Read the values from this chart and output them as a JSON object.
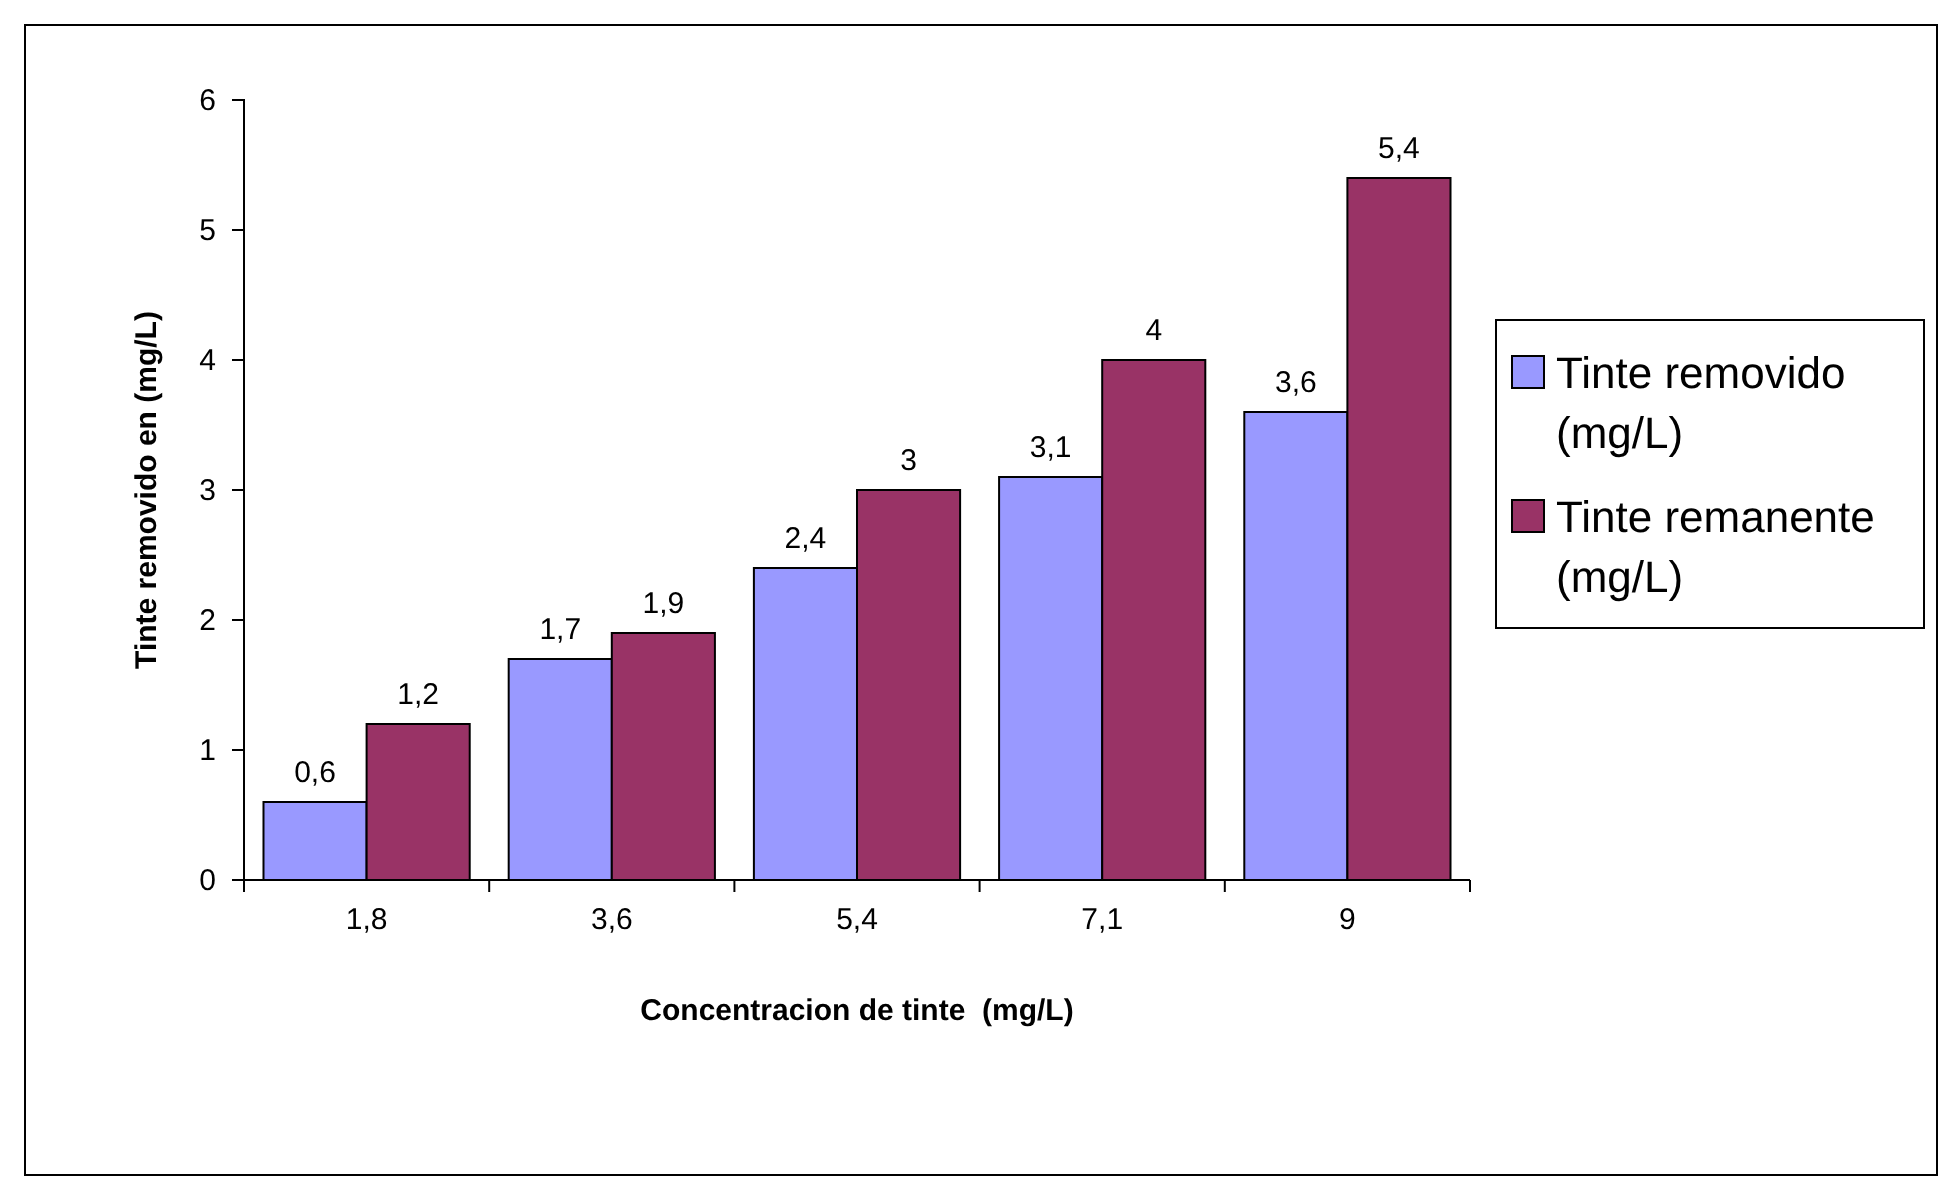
{
  "chart_data": {
    "type": "bar",
    "xlabel": "Concentracion de tinte  (mg/L)",
    "ylabel": "Tinte removido en (mg/L)",
    "categories": [
      "1,8",
      "3,6",
      "5,4",
      "7,1",
      "9"
    ],
    "series": [
      {
        "name": "Tinte removido (mg/L)",
        "color": "#9999ff",
        "values": [
          0.6,
          1.7,
          2.4,
          3.1,
          3.6
        ],
        "value_labels": [
          "0,6",
          "1,7",
          "2,4",
          "3,1",
          "3,6"
        ]
      },
      {
        "name": "Tinte remanente (mg/L)",
        "color": "#993366",
        "values": [
          1.2,
          1.9,
          3,
          4,
          5.4
        ],
        "value_labels": [
          "1,2",
          "1,9",
          "3",
          "4",
          "5,4"
        ]
      }
    ],
    "ylim": [
      0,
      6
    ],
    "yticks": [
      0,
      1,
      2,
      3,
      4,
      5,
      6
    ],
    "grid": false,
    "legend": "right"
  }
}
